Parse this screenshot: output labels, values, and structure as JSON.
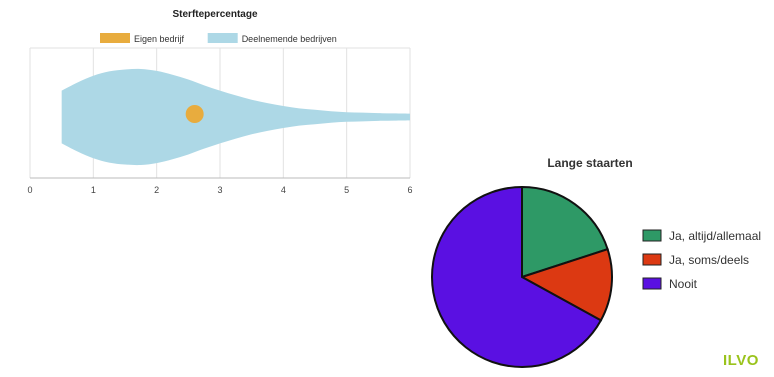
{
  "chart_data": [
    {
      "type": "violin",
      "title": "Sterftepercentage",
      "legend": {
        "placement": "top",
        "items": [
          {
            "label": "Eigen bedrijf",
            "color": "#e8ac3e"
          },
          {
            "label": "Deelnemende bedrijven",
            "color": "#add8e6"
          }
        ]
      },
      "xlim": [
        0,
        6
      ],
      "xticks": [
        "0",
        "1",
        "2",
        "3",
        "4",
        "5",
        "6"
      ],
      "grid": true,
      "series": [
        {
          "name": "Deelnemende bedrijven",
          "color": "#add8e6",
          "min": 0.5,
          "max": 6,
          "density": [
            [
              0.5,
              0.55
            ],
            [
              0.75,
              0.72
            ],
            [
              1.0,
              0.86
            ],
            [
              1.25,
              0.95
            ],
            [
              1.5,
              0.99
            ],
            [
              1.75,
              1.0
            ],
            [
              2.0,
              0.96
            ],
            [
              2.25,
              0.88
            ],
            [
              2.5,
              0.78
            ],
            [
              2.75,
              0.66
            ],
            [
              3.0,
              0.55
            ],
            [
              3.25,
              0.45
            ],
            [
              3.5,
              0.36
            ],
            [
              3.75,
              0.29
            ],
            [
              4.0,
              0.23
            ],
            [
              4.25,
              0.18
            ],
            [
              4.5,
              0.15
            ],
            [
              4.75,
              0.12
            ],
            [
              5.0,
              0.1
            ],
            [
              5.25,
              0.09
            ],
            [
              5.5,
              0.08
            ],
            [
              5.75,
              0.075
            ],
            [
              6.0,
              0.07
            ]
          ]
        },
        {
          "name": "Eigen bedrijf",
          "color": "#e8ac3e",
          "value": 2.6
        }
      ]
    },
    {
      "type": "pie",
      "title": "Lange staarten",
      "legend": {
        "placement": "right"
      },
      "slices": [
        {
          "label": "Ja, altijd/allemaal",
          "value": 20,
          "color": "#2e9966"
        },
        {
          "label": "Ja, soms/deels",
          "value": 13,
          "color": "#dc3912"
        },
        {
          "label": "Nooit",
          "value": 67,
          "color": "#5a10e2"
        }
      ]
    }
  ],
  "logo": "ILVO"
}
